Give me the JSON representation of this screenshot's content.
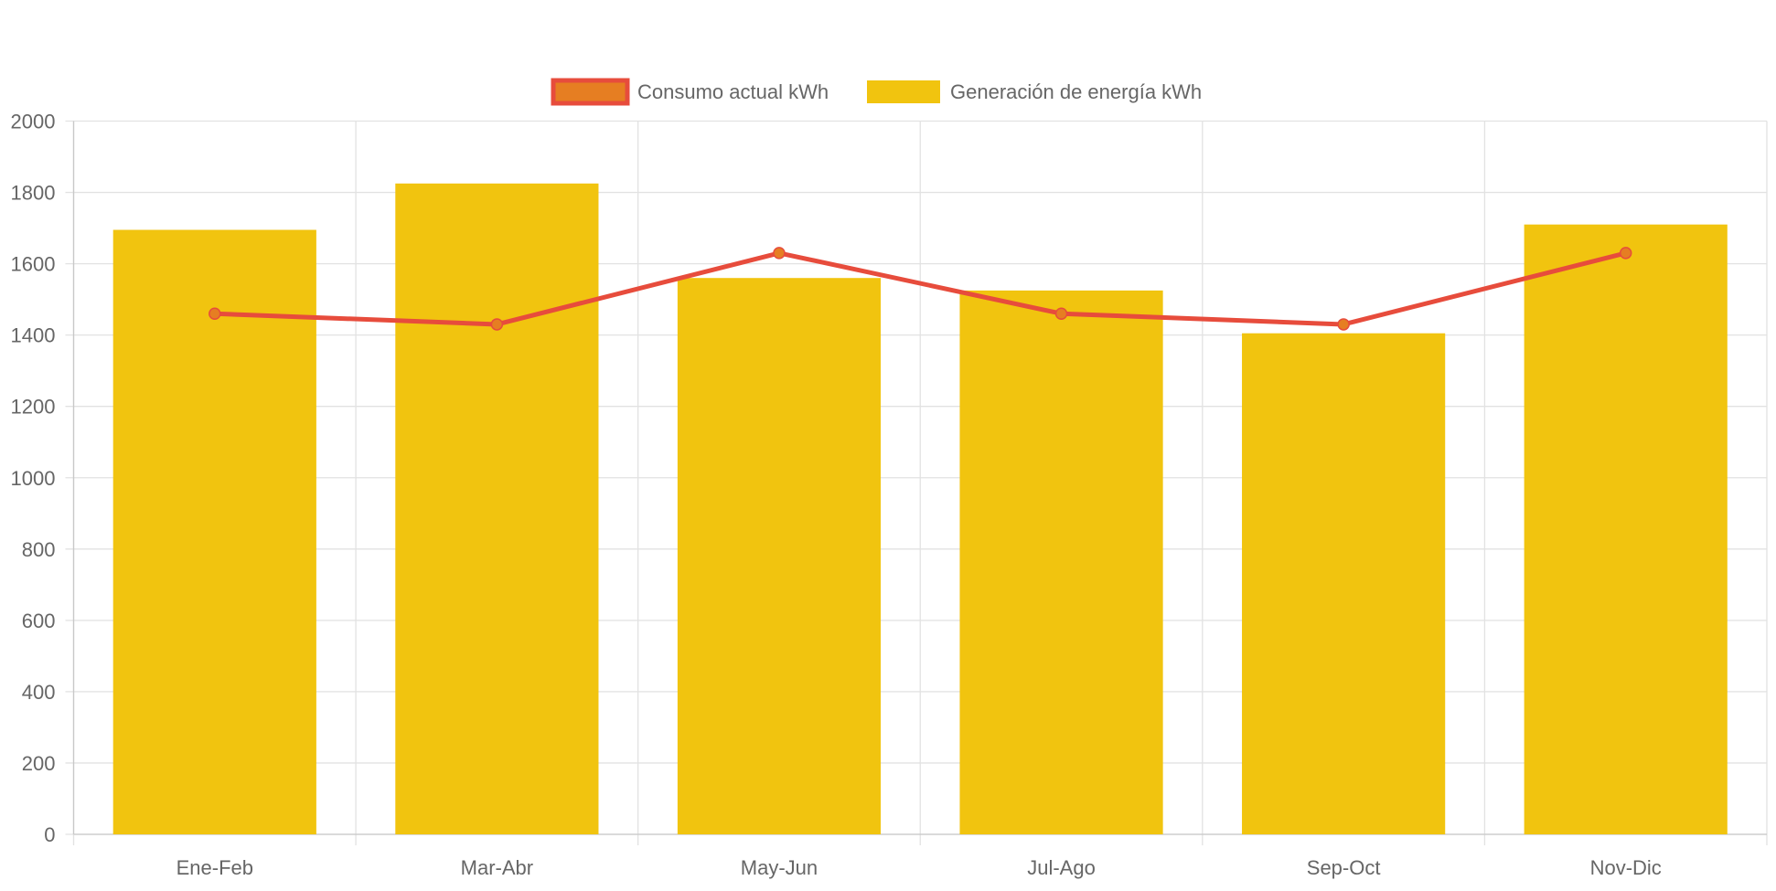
{
  "chart_data": {
    "type": "bar",
    "categories": [
      "Ene-Feb",
      "Mar-Abr",
      "May-Jun",
      "Jul-Ago",
      "Sep-Oct",
      "Nov-Dic"
    ],
    "series": [
      {
        "name": "Consumo actual kWh",
        "type": "line",
        "values": [
          1460,
          1430,
          1630,
          1460,
          1430,
          1630
        ],
        "color": "#e74c3c",
        "point_color": "#e67e22"
      },
      {
        "name": "Generación de energía kWh",
        "type": "bar",
        "values": [
          1695,
          1825,
          1560,
          1525,
          1405,
          1710
        ],
        "color": "#f1c40f"
      }
    ],
    "ylim": [
      0,
      2000
    ],
    "yticks": [
      0,
      200,
      400,
      600,
      800,
      1000,
      1200,
      1400,
      1600,
      1800,
      2000
    ],
    "grid": true,
    "legend": "top"
  }
}
